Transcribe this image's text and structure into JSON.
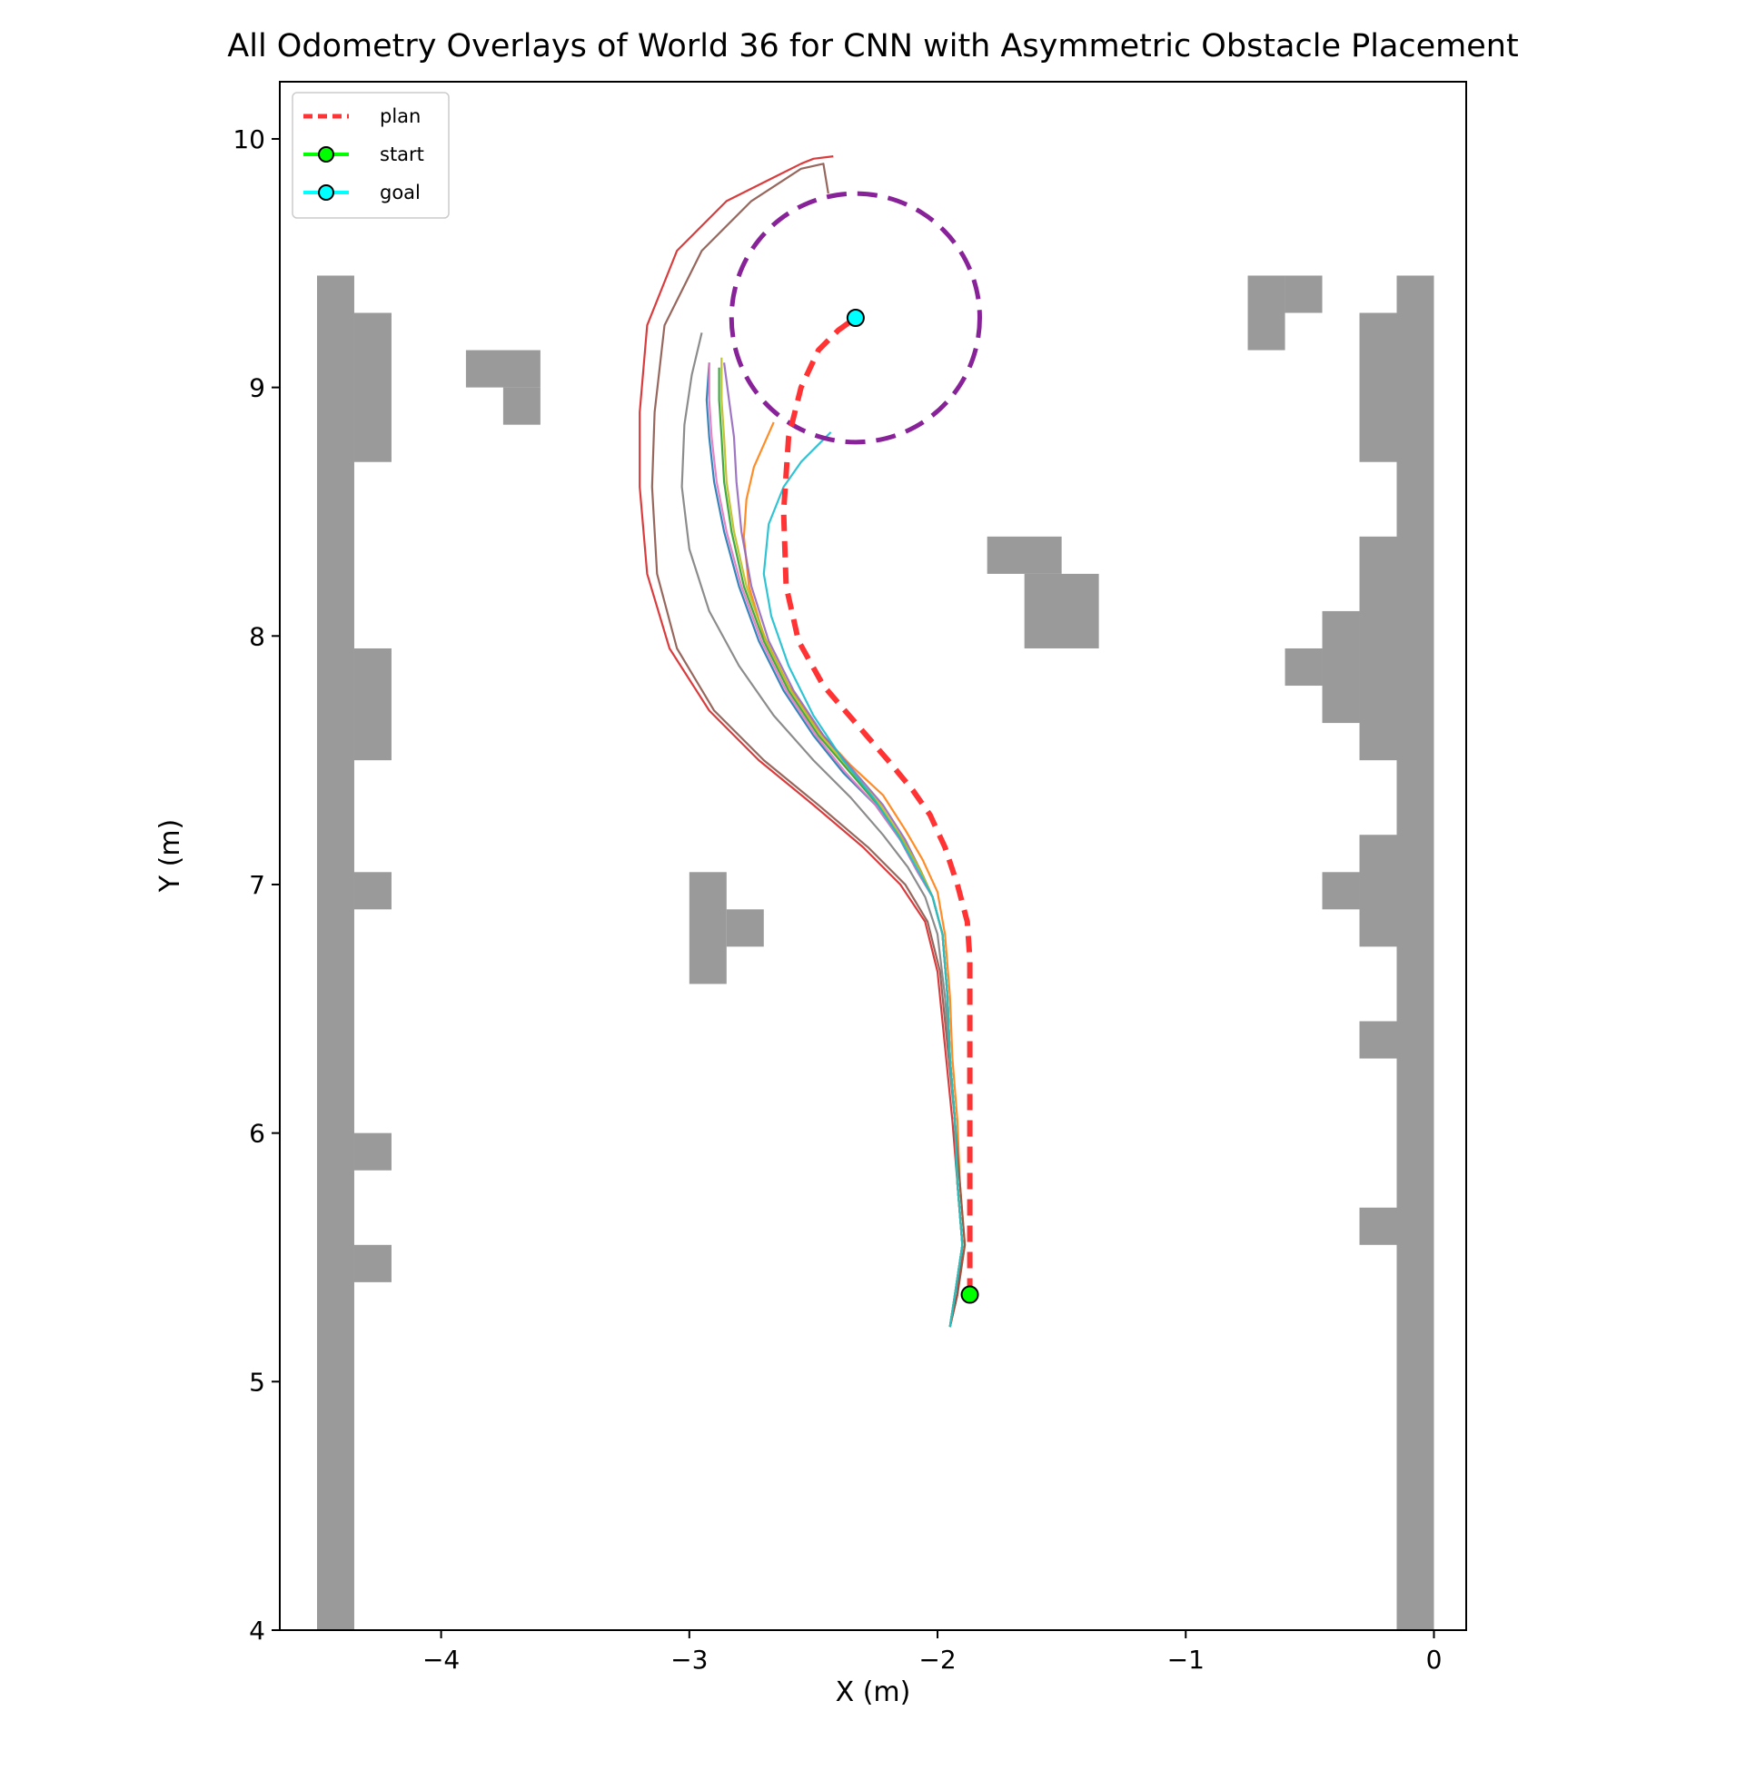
{
  "chart_data": {
    "type": "line",
    "title": "All Odometry Overlays of World 36 for CNN with Asymmetric Obstacle Placement",
    "xlabel": "X (m)",
    "ylabel": "Y (m)",
    "xlim": [
      -4.65,
      0.13
    ],
    "ylim": [
      4.0,
      10.23
    ],
    "xticks": [
      -4,
      -3,
      -2,
      -1,
      0
    ],
    "yticks": [
      4,
      5,
      6,
      7,
      8,
      9,
      10
    ],
    "xtick_labels": [
      "−4",
      "−3",
      "−2",
      "−1",
      "0"
    ],
    "ytick_labels": [
      "4",
      "5",
      "6",
      "7",
      "8",
      "9",
      "10"
    ],
    "grid": false,
    "legend_position": "top-left",
    "legend": [
      {
        "label": "plan",
        "color": "#ff3333",
        "style": "dashed"
      },
      {
        "label": "start",
        "color": "#00ff00",
        "style": "marker"
      },
      {
        "label": "goal",
        "color": "#00ffff",
        "style": "marker"
      }
    ],
    "colors": {
      "obstacle": "#9a9a9a",
      "plan": "#ff3333",
      "goal_circle": "#882299",
      "start_marker": "#00ff00",
      "goal_marker": "#00ffff"
    },
    "start": {
      "x": -1.87,
      "y": 5.35
    },
    "goal": {
      "x": -2.33,
      "y": 9.28
    },
    "goal_circle": {
      "center": [
        -2.33,
        9.28
      ],
      "radius": 0.5
    },
    "obstacles": [
      [
        -4.5,
        4.0,
        -4.35,
        9.45
      ],
      [
        -4.35,
        8.7,
        -4.2,
        9.3
      ],
      [
        -4.35,
        7.5,
        -4.2,
        7.95
      ],
      [
        -4.35,
        6.9,
        -4.2,
        7.05
      ],
      [
        -4.35,
        5.85,
        -4.2,
        6.0
      ],
      [
        -4.35,
        5.4,
        -4.2,
        5.55
      ],
      [
        -3.9,
        9.0,
        -3.6,
        9.15
      ],
      [
        -3.75,
        8.85,
        -3.6,
        9.0
      ],
      [
        -3.0,
        6.6,
        -2.85,
        7.05
      ],
      [
        -2.85,
        6.75,
        -2.7,
        6.9
      ],
      [
        -1.8,
        8.25,
        -1.5,
        8.4
      ],
      [
        -1.65,
        7.95,
        -1.35,
        8.25
      ],
      [
        -0.75,
        9.15,
        -0.6,
        9.45
      ],
      [
        -0.6,
        9.3,
        -0.45,
        9.45
      ],
      [
        -0.15,
        4.0,
        0.0,
        9.45
      ],
      [
        -0.3,
        8.7,
        -0.15,
        9.3
      ],
      [
        -0.3,
        7.5,
        -0.15,
        8.4
      ],
      [
        -0.45,
        7.65,
        -0.3,
        8.1
      ],
      [
        -0.6,
        7.8,
        -0.45,
        7.95
      ],
      [
        -0.3,
        6.75,
        -0.15,
        7.2
      ],
      [
        -0.45,
        6.9,
        -0.3,
        7.05
      ],
      [
        -0.3,
        6.3,
        -0.15,
        6.45
      ],
      [
        -0.3,
        5.55,
        -0.15,
        5.7
      ]
    ],
    "plan": {
      "x": [
        -1.87,
        -1.87,
        -1.87,
        -1.87,
        -1.88,
        -1.92,
        -1.97,
        -2.03,
        -2.1,
        -2.2,
        -2.33,
        -2.46,
        -2.56,
        -2.61,
        -2.62,
        -2.6,
        -2.55,
        -2.48,
        -2.4,
        -2.33
      ],
      "y": [
        5.35,
        5.8,
        6.3,
        6.7,
        6.85,
        7.0,
        7.15,
        7.28,
        7.38,
        7.5,
        7.65,
        7.8,
        7.98,
        8.2,
        8.5,
        8.8,
        9.0,
        9.15,
        9.23,
        9.28
      ]
    },
    "series": [
      {
        "color": "#1f77b4",
        "x": [
          -1.95,
          -1.93,
          -1.9,
          -1.92,
          -1.93,
          -1.95,
          -1.96,
          -1.98,
          -2.02,
          -2.08,
          -2.15,
          -2.25,
          -2.38,
          -2.5,
          -2.62,
          -2.72,
          -2.8,
          -2.86,
          -2.9,
          -2.92,
          -2.93,
          -2.92
        ],
        "y": [
          5.22,
          5.35,
          5.55,
          5.8,
          6.05,
          6.3,
          6.55,
          6.8,
          6.95,
          7.05,
          7.18,
          7.32,
          7.45,
          7.6,
          7.78,
          7.98,
          8.2,
          8.42,
          8.62,
          8.8,
          8.95,
          9.1
        ]
      },
      {
        "color": "#ff7f0e",
        "x": [
          -1.95,
          -1.92,
          -1.89,
          -1.91,
          -1.92,
          -1.94,
          -1.95,
          -1.97,
          -2.0,
          -2.06,
          -2.13,
          -2.22,
          -2.35,
          -2.48,
          -2.6,
          -2.7,
          -2.76,
          -2.78,
          -2.77,
          -2.74,
          -2.7,
          -2.66
        ],
        "y": [
          5.22,
          5.35,
          5.55,
          5.8,
          6.05,
          6.3,
          6.55,
          6.8,
          6.97,
          7.1,
          7.22,
          7.36,
          7.48,
          7.62,
          7.8,
          8.0,
          8.2,
          8.4,
          8.55,
          8.68,
          8.77,
          8.86
        ]
      },
      {
        "color": "#2ca02c",
        "x": [
          -1.95,
          -1.93,
          -1.9,
          -1.92,
          -1.93,
          -1.95,
          -1.96,
          -1.98,
          -2.02,
          -2.07,
          -2.14,
          -2.24,
          -2.36,
          -2.48,
          -2.6,
          -2.7,
          -2.78,
          -2.83,
          -2.86,
          -2.87,
          -2.88,
          -2.88
        ],
        "y": [
          5.22,
          5.35,
          5.55,
          5.8,
          6.05,
          6.3,
          6.55,
          6.8,
          6.95,
          7.06,
          7.18,
          7.32,
          7.46,
          7.6,
          7.78,
          7.98,
          8.2,
          8.42,
          8.62,
          8.8,
          8.95,
          9.08
        ]
      },
      {
        "color": "#d62728",
        "x": [
          -1.95,
          -1.92,
          -1.9,
          -1.92,
          -1.94,
          -1.97,
          -2.0,
          -2.05,
          -2.15,
          -2.3,
          -2.5,
          -2.72,
          -2.92,
          -3.08,
          -3.17,
          -3.2,
          -3.2,
          -3.17,
          -3.05,
          -2.85,
          -2.65,
          -2.55,
          -2.5,
          -2.42
        ],
        "y": [
          5.22,
          5.35,
          5.55,
          5.8,
          6.05,
          6.35,
          6.65,
          6.85,
          7.0,
          7.15,
          7.32,
          7.5,
          7.7,
          7.95,
          8.25,
          8.6,
          8.9,
          9.25,
          9.55,
          9.75,
          9.85,
          9.9,
          9.92,
          9.93
        ]
      },
      {
        "color": "#9467bd",
        "x": [
          -1.95,
          -1.93,
          -1.9,
          -1.92,
          -1.93,
          -1.95,
          -1.96,
          -1.98,
          -2.02,
          -2.07,
          -2.13,
          -2.22,
          -2.34,
          -2.46,
          -2.58,
          -2.68,
          -2.75,
          -2.79,
          -2.81,
          -2.82,
          -2.84,
          -2.86
        ],
        "y": [
          5.22,
          5.35,
          5.55,
          5.8,
          6.05,
          6.3,
          6.55,
          6.8,
          6.95,
          7.06,
          7.18,
          7.32,
          7.46,
          7.6,
          7.78,
          7.98,
          8.2,
          8.42,
          8.62,
          8.8,
          8.95,
          9.1
        ]
      },
      {
        "color": "#8c564b",
        "x": [
          -1.95,
          -1.92,
          -1.89,
          -1.91,
          -1.93,
          -1.96,
          -1.99,
          -2.04,
          -2.13,
          -2.28,
          -2.48,
          -2.7,
          -2.9,
          -3.05,
          -3.13,
          -3.15,
          -3.14,
          -3.1,
          -2.95,
          -2.75,
          -2.55,
          -2.46,
          -2.44
        ],
        "y": [
          5.22,
          5.35,
          5.55,
          5.8,
          6.05,
          6.35,
          6.65,
          6.85,
          7.0,
          7.15,
          7.32,
          7.5,
          7.7,
          7.95,
          8.25,
          8.6,
          8.9,
          9.25,
          9.55,
          9.75,
          9.88,
          9.9,
          9.78
        ]
      },
      {
        "color": "#e377c2",
        "x": [
          -1.95,
          -1.93,
          -1.9,
          -1.92,
          -1.93,
          -1.95,
          -1.96,
          -1.98,
          -2.02,
          -2.08,
          -2.15,
          -2.25,
          -2.37,
          -2.49,
          -2.61,
          -2.71,
          -2.79,
          -2.85,
          -2.89,
          -2.91,
          -2.92,
          -2.92
        ],
        "y": [
          5.22,
          5.35,
          5.55,
          5.8,
          6.05,
          6.3,
          6.55,
          6.8,
          6.95,
          7.05,
          7.18,
          7.32,
          7.45,
          7.6,
          7.78,
          7.98,
          8.2,
          8.42,
          8.62,
          8.8,
          8.95,
          9.1
        ]
      },
      {
        "color": "#7f7f7f",
        "x": [
          -1.95,
          -1.93,
          -1.9,
          -1.92,
          -1.93,
          -1.95,
          -1.97,
          -2.0,
          -2.05,
          -2.12,
          -2.22,
          -2.35,
          -2.5,
          -2.66,
          -2.8,
          -2.92,
          -3.0,
          -3.03,
          -3.02,
          -2.99,
          -2.95
        ],
        "y": [
          5.22,
          5.35,
          5.55,
          5.8,
          6.05,
          6.3,
          6.55,
          6.8,
          6.95,
          7.07,
          7.2,
          7.35,
          7.5,
          7.68,
          7.88,
          8.1,
          8.35,
          8.6,
          8.85,
          9.05,
          9.22
        ]
      },
      {
        "color": "#bcbd22",
        "x": [
          -1.95,
          -1.93,
          -1.9,
          -1.92,
          -1.93,
          -1.95,
          -1.96,
          -1.98,
          -2.02,
          -2.07,
          -2.14,
          -2.23,
          -2.35,
          -2.47,
          -2.59,
          -2.69,
          -2.77,
          -2.82,
          -2.85,
          -2.86,
          -2.87,
          -2.87
        ],
        "y": [
          5.22,
          5.35,
          5.55,
          5.8,
          6.05,
          6.3,
          6.55,
          6.8,
          6.95,
          7.06,
          7.18,
          7.32,
          7.46,
          7.6,
          7.78,
          7.98,
          8.2,
          8.42,
          8.62,
          8.8,
          8.95,
          9.12
        ]
      },
      {
        "color": "#17becf",
        "x": [
          -1.95,
          -1.93,
          -1.9,
          -1.92,
          -1.93,
          -1.95,
          -1.96,
          -1.98,
          -2.02,
          -2.08,
          -2.16,
          -2.26,
          -2.38,
          -2.5,
          -2.6,
          -2.67,
          -2.7,
          -2.68,
          -2.62,
          -2.55,
          -2.47,
          -2.43
        ],
        "y": [
          5.22,
          5.35,
          5.55,
          5.8,
          6.05,
          6.3,
          6.55,
          6.8,
          6.95,
          7.06,
          7.2,
          7.35,
          7.5,
          7.68,
          7.88,
          8.08,
          8.25,
          8.45,
          8.6,
          8.7,
          8.78,
          8.82
        ]
      }
    ]
  }
}
